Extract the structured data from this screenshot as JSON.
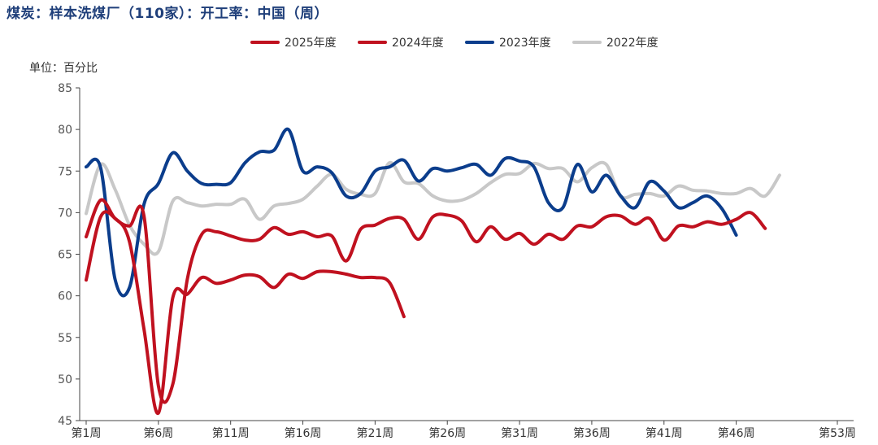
{
  "title": "煤炭：样本洗煤厂（110家）：开工率：中国（周）",
  "unit_label": "单位：百分比",
  "colors": {
    "s2025": "#c0111f",
    "s2024": "#c0111f",
    "s2023": "#0b3d8c",
    "s2022": "#c8c8c8"
  },
  "chart_data": {
    "type": "line",
    "title": "煤炭：样本洗煤厂（110家）：开工率：中国（周）",
    "ylabel": "单位：百分比",
    "xlabel": "",
    "ylim": [
      45,
      85
    ],
    "yticks": [
      45,
      50,
      55,
      60,
      65,
      70,
      75,
      80,
      85
    ],
    "xlim": [
      1,
      53
    ],
    "xticks": [
      {
        "week": 1,
        "label": "第1周"
      },
      {
        "week": 6,
        "label": "第6周"
      },
      {
        "week": 11,
        "label": "第11周"
      },
      {
        "week": 16,
        "label": "第16周"
      },
      {
        "week": 21,
        "label": "第21周"
      },
      {
        "week": 26,
        "label": "第26周"
      },
      {
        "week": 31,
        "label": "第31周"
      },
      {
        "week": 36,
        "label": "第36周"
      },
      {
        "week": 41,
        "label": "第41周"
      },
      {
        "week": 46,
        "label": "第46周"
      },
      {
        "week": 53,
        "label": "第53周"
      }
    ],
    "series": [
      {
        "name": "2025年度",
        "color_key": "s2025",
        "values": [
          [
            1,
            61.9
          ],
          [
            2,
            69.5
          ],
          [
            3,
            69.3
          ],
          [
            4,
            66.5
          ],
          [
            5,
            56.0
          ],
          [
            6,
            45.9
          ],
          [
            7,
            59.8
          ],
          [
            8,
            60.2
          ],
          [
            9,
            62.2
          ],
          [
            10,
            61.5
          ],
          [
            11,
            61.9
          ],
          [
            12,
            62.5
          ],
          [
            13,
            62.3
          ],
          [
            14,
            61.0
          ],
          [
            15,
            62.6
          ],
          [
            16,
            62.1
          ],
          [
            17,
            62.9
          ],
          [
            18,
            62.9
          ],
          [
            19,
            62.6
          ],
          [
            20,
            62.2
          ],
          [
            21,
            62.2
          ],
          [
            22,
            61.6
          ],
          [
            23,
            57.5
          ]
        ]
      },
      {
        "name": "2024年度",
        "color_key": "s2024",
        "values": [
          [
            1,
            67.1
          ],
          [
            2,
            71.5
          ],
          [
            3,
            69.3
          ],
          [
            4,
            68.4
          ],
          [
            5,
            69.6
          ],
          [
            6,
            49.2
          ],
          [
            7,
            49.4
          ],
          [
            8,
            62.0
          ],
          [
            9,
            67.4
          ],
          [
            10,
            67.7
          ],
          [
            11,
            67.2
          ],
          [
            12,
            66.7
          ],
          [
            13,
            66.8
          ],
          [
            14,
            68.2
          ],
          [
            15,
            67.4
          ],
          [
            16,
            67.7
          ],
          [
            17,
            67.1
          ],
          [
            18,
            67.2
          ],
          [
            19,
            64.2
          ],
          [
            20,
            68.0
          ],
          [
            21,
            68.5
          ],
          [
            22,
            69.3
          ],
          [
            23,
            69.2
          ],
          [
            24,
            66.8
          ],
          [
            25,
            69.5
          ],
          [
            26,
            69.7
          ],
          [
            27,
            69.0
          ],
          [
            28,
            66.5
          ],
          [
            29,
            68.3
          ],
          [
            30,
            66.8
          ],
          [
            31,
            67.5
          ],
          [
            32,
            66.2
          ],
          [
            33,
            67.4
          ],
          [
            34,
            66.8
          ],
          [
            35,
            68.4
          ],
          [
            36,
            68.3
          ],
          [
            37,
            69.5
          ],
          [
            38,
            69.6
          ],
          [
            39,
            68.6
          ],
          [
            40,
            69.3
          ],
          [
            41,
            66.7
          ],
          [
            42,
            68.4
          ],
          [
            43,
            68.3
          ],
          [
            44,
            68.9
          ],
          [
            45,
            68.6
          ],
          [
            46,
            69.2
          ],
          [
            47,
            70.0
          ],
          [
            48,
            68.1
          ]
        ]
      },
      {
        "name": "2023年度",
        "color_key": "s2023",
        "values": [
          [
            1,
            75.5
          ],
          [
            2,
            75.4
          ],
          [
            3,
            62.0
          ],
          [
            4,
            61.0
          ],
          [
            5,
            71.0
          ],
          [
            6,
            73.5
          ],
          [
            7,
            77.2
          ],
          [
            8,
            75.0
          ],
          [
            9,
            73.5
          ],
          [
            10,
            73.4
          ],
          [
            11,
            73.6
          ],
          [
            12,
            76.0
          ],
          [
            13,
            77.3
          ],
          [
            14,
            77.5
          ],
          [
            15,
            80.0
          ],
          [
            16,
            75.0
          ],
          [
            17,
            75.5
          ],
          [
            18,
            74.8
          ],
          [
            19,
            72.0
          ],
          [
            20,
            72.3
          ],
          [
            21,
            75.0
          ],
          [
            22,
            75.5
          ],
          [
            23,
            76.3
          ],
          [
            24,
            73.8
          ],
          [
            25,
            75.3
          ],
          [
            26,
            75.0
          ],
          [
            27,
            75.4
          ],
          [
            28,
            75.8
          ],
          [
            29,
            74.5
          ],
          [
            30,
            76.5
          ],
          [
            31,
            76.2
          ],
          [
            32,
            75.5
          ],
          [
            33,
            71.2
          ],
          [
            34,
            70.6
          ],
          [
            35,
            75.8
          ],
          [
            36,
            72.5
          ],
          [
            37,
            74.5
          ],
          [
            38,
            72.0
          ],
          [
            39,
            70.6
          ],
          [
            40,
            73.7
          ],
          [
            41,
            72.6
          ],
          [
            42,
            70.6
          ],
          [
            43,
            71.2
          ],
          [
            44,
            72.0
          ],
          [
            45,
            70.5
          ],
          [
            46,
            67.3
          ]
        ]
      },
      {
        "name": "2022年度",
        "color_key": "s2022",
        "values": [
          [
            1,
            69.9
          ],
          [
            2,
            75.8
          ],
          [
            3,
            72.8
          ],
          [
            4,
            68.5
          ],
          [
            5,
            66.2
          ],
          [
            6,
            65.3
          ],
          [
            7,
            71.4
          ],
          [
            8,
            71.2
          ],
          [
            9,
            70.8
          ],
          [
            10,
            71.0
          ],
          [
            11,
            71.0
          ],
          [
            12,
            71.6
          ],
          [
            13,
            69.2
          ],
          [
            14,
            70.8
          ],
          [
            15,
            71.1
          ],
          [
            16,
            71.6
          ],
          [
            17,
            73.2
          ],
          [
            18,
            74.6
          ],
          [
            19,
            72.8
          ],
          [
            20,
            72.2
          ],
          [
            21,
            72.3
          ],
          [
            22,
            76.0
          ],
          [
            23,
            73.7
          ],
          [
            24,
            73.5
          ],
          [
            25,
            72.0
          ],
          [
            26,
            71.4
          ],
          [
            27,
            71.5
          ],
          [
            28,
            72.3
          ],
          [
            29,
            73.6
          ],
          [
            30,
            74.6
          ],
          [
            31,
            74.7
          ],
          [
            32,
            75.9
          ],
          [
            33,
            75.3
          ],
          [
            34,
            75.3
          ],
          [
            35,
            73.7
          ],
          [
            36,
            75.4
          ],
          [
            37,
            75.8
          ],
          [
            38,
            72.0
          ],
          [
            39,
            72.2
          ],
          [
            40,
            72.3
          ],
          [
            41,
            72.0
          ],
          [
            42,
            73.2
          ],
          [
            43,
            72.7
          ],
          [
            44,
            72.6
          ],
          [
            45,
            72.3
          ],
          [
            46,
            72.3
          ],
          [
            47,
            72.9
          ],
          [
            48,
            72.0
          ],
          [
            49,
            74.5
          ]
        ]
      }
    ]
  }
}
